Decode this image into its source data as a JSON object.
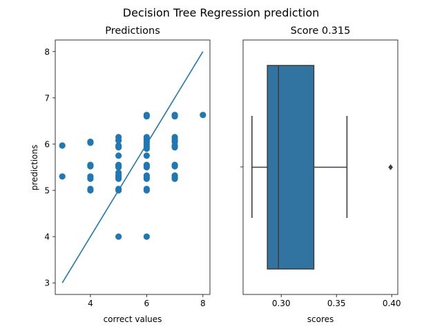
{
  "figure": {
    "title": "Decision Tree Regression prediction"
  },
  "chart_data": [
    {
      "type": "scatter",
      "title": "Predictions",
      "xlabel": "correct values",
      "ylabel": "predictions",
      "xlim": [
        2.75,
        8.25
      ],
      "ylim": [
        2.75,
        8.25
      ],
      "xticks": [
        4,
        6,
        8
      ],
      "yticks": [
        3,
        4,
        5,
        6,
        7,
        8
      ],
      "grid": false,
      "color": "#1f77b4",
      "series": [
        {
          "points": [
            [
              3,
              5.97
            ],
            [
              3,
              5.3
            ],
            [
              4,
              6.05
            ],
            [
              4,
              6.03
            ],
            [
              4,
              5.55
            ],
            [
              4,
              5.52
            ],
            [
              4,
              5.3
            ],
            [
              4,
              5.25
            ],
            [
              4,
              5.03
            ],
            [
              4,
              5.0
            ],
            [
              5,
              6.15
            ],
            [
              5,
              6.08
            ],
            [
              5,
              5.97
            ],
            [
              5,
              5.93
            ],
            [
              5,
              5.75
            ],
            [
              5,
              5.55
            ],
            [
              5,
              5.52
            ],
            [
              5,
              5.5
            ],
            [
              5,
              5.38
            ],
            [
              5,
              5.32
            ],
            [
              5,
              5.28
            ],
            [
              5,
              5.25
            ],
            [
              5,
              5.03
            ],
            [
              5,
              5.0
            ],
            [
              5,
              4.0
            ],
            [
              6,
              6.63
            ],
            [
              6,
              6.6
            ],
            [
              6,
              6.15
            ],
            [
              6,
              6.1
            ],
            [
              6,
              6.05
            ],
            [
              6,
              6.0
            ],
            [
              6,
              5.95
            ],
            [
              6,
              5.9
            ],
            [
              6,
              5.75
            ],
            [
              6,
              5.55
            ],
            [
              6,
              5.52
            ],
            [
              6,
              5.5
            ],
            [
              6,
              5.32
            ],
            [
              6,
              5.28
            ],
            [
              6,
              5.25
            ],
            [
              6,
              5.03
            ],
            [
              6,
              5.0
            ],
            [
              6,
              4.0
            ],
            [
              7,
              6.63
            ],
            [
              7,
              6.6
            ],
            [
              7,
              6.15
            ],
            [
              7,
              6.1
            ],
            [
              7,
              6.05
            ],
            [
              7,
              5.97
            ],
            [
              7,
              5.93
            ],
            [
              7,
              5.55
            ],
            [
              7,
              5.52
            ],
            [
              7,
              5.32
            ],
            [
              7,
              5.28
            ],
            [
              7,
              5.25
            ],
            [
              8,
              6.63
            ]
          ]
        }
      ],
      "reference_line": {
        "from": [
          3,
          3
        ],
        "to": [
          8,
          8
        ],
        "color": "#1f77b4"
      }
    },
    {
      "type": "box",
      "title": "Score 0.315",
      "xlabel": "scores",
      "ylabel": "",
      "xlim": [
        0.2655,
        0.4055
      ],
      "xticks": [
        0.3,
        0.35,
        0.4
      ],
      "xtick_labels": [
        "0.30",
        "0.35",
        "0.40"
      ],
      "orientation": "horizontal",
      "box_color": "#3274a1",
      "line_color": "#3f3f3f",
      "stats": {
        "whisker_low": 0.2735,
        "q1": 0.2875,
        "median": 0.2975,
        "q3": 0.3295,
        "whisker_high": 0.3595,
        "outliers": [
          0.399
        ]
      }
    }
  ]
}
